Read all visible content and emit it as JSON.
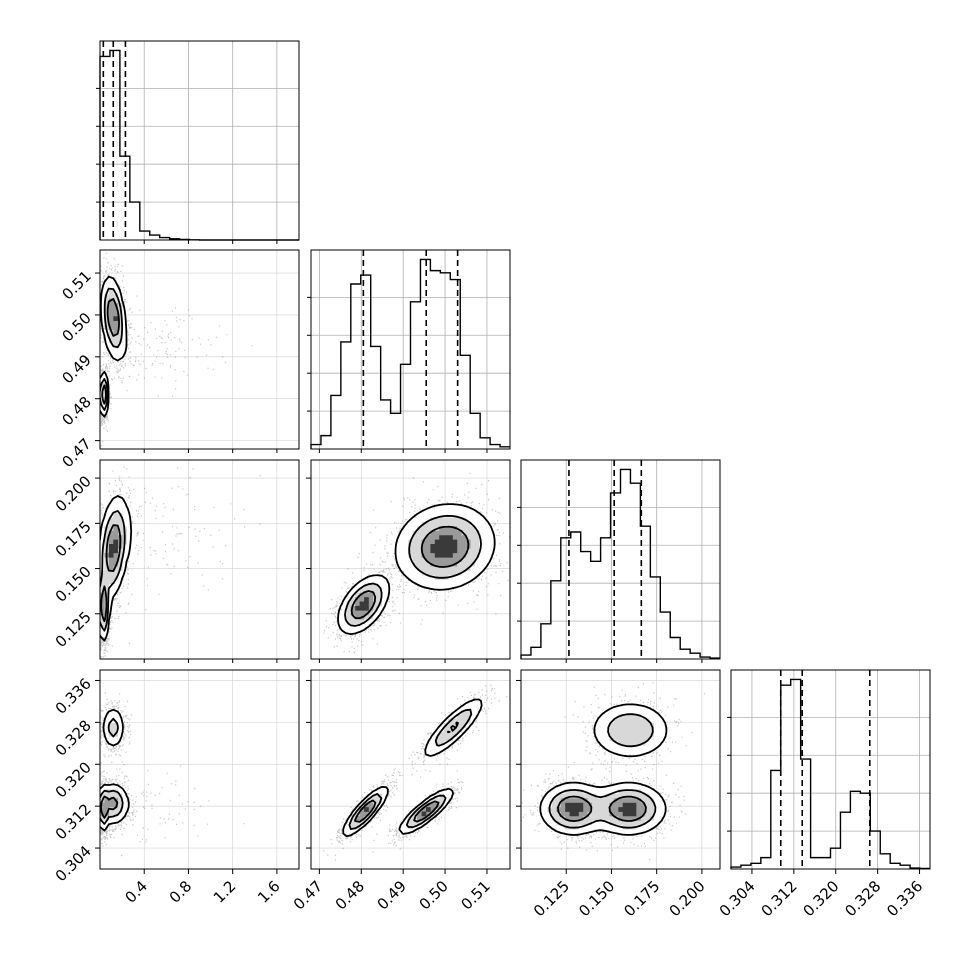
{
  "chart_data": {
    "type": "corner",
    "parameters": [
      {
        "range": [
          0,
          1.8
        ],
        "ticks": [
          0.4,
          0.8,
          1.2,
          1.6
        ],
        "tick_labels": [
          "0.4",
          "0.8",
          "1.2",
          "1.6"
        ],
        "quantiles": [
          0.03,
          0.12,
          0.23
        ],
        "histogram": {
          "bins": 20,
          "counts": [
            0.92,
            0.95,
            0.42,
            0.19,
            0.045,
            0.025,
            0.012,
            0.006,
            0.003,
            0.001,
            0,
            0,
            0,
            0,
            0,
            0,
            0,
            0,
            0,
            0
          ]
        }
      },
      {
        "range": [
          0.468,
          0.5155
        ],
        "ticks": [
          0.47,
          0.48,
          0.49,
          0.5,
          0.51
        ],
        "tick_labels": [
          "0.47",
          "0.48",
          "0.49",
          "0.50",
          "0.51"
        ],
        "quantiles": [
          0.4805,
          0.4955,
          0.503
        ],
        "histogram": {
          "bins": 20,
          "counts": [
            0.02,
            0.06,
            0.24,
            0.48,
            0.74,
            0.78,
            0.46,
            0.22,
            0.16,
            0.38,
            0.66,
            0.85,
            0.8,
            0.79,
            0.76,
            0.42,
            0.16,
            0.05,
            0.02,
            0.01
          ]
        }
      },
      {
        "range": [
          0.1,
          0.21
        ],
        "ticks": [
          0.125,
          0.15,
          0.175,
          0.2
        ],
        "tick_labels": [
          "0.125",
          "0.150",
          "0.175",
          "0.200"
        ],
        "quantiles": [
          0.1265,
          0.1515,
          0.1665
        ],
        "histogram": {
          "bins": 20,
          "counts": [
            0.02,
            0.06,
            0.18,
            0.4,
            0.62,
            0.65,
            0.55,
            0.5,
            0.62,
            0.85,
            0.97,
            0.9,
            0.68,
            0.42,
            0.24,
            0.11,
            0.05,
            0.03,
            0.01,
            0.005
          ]
        }
      },
      {
        "range": [
          0.3,
          0.338
        ],
        "ticks": [
          0.304,
          0.312,
          0.32,
          0.328,
          0.336
        ],
        "tick_labels": [
          "0.304",
          "0.312",
          "0.320",
          "0.328",
          "0.336"
        ],
        "quantiles": [
          0.3095,
          0.3136,
          0.3265
        ],
        "histogram": {
          "bins": 20,
          "counts": [
            0.01,
            0.02,
            0.03,
            0.06,
            0.52,
            0.97,
            1.0,
            0.58,
            0.06,
            0.06,
            0.11,
            0.3,
            0.41,
            0.4,
            0.2,
            0.08,
            0.03,
            0.02,
            0.005,
            0.003
          ]
        }
      }
    ],
    "joint": [
      {
        "row": 1,
        "col": 0,
        "modes": [
          {
            "x": 0.03,
            "y": 0.481,
            "sx": 0.02,
            "sy": 0.0025,
            "w": 1.0,
            "rho": 0
          },
          {
            "x": 0.12,
            "y": 0.4995,
            "sx": 0.05,
            "sy": 0.0045,
            "w": 1.0,
            "rho": -0.3
          },
          {
            "x": 0.5,
            "y": 0.492,
            "sx": 0.25,
            "sy": 0.004,
            "w": 0.1,
            "rho": 0
          }
        ]
      },
      {
        "row": 2,
        "col": 0,
        "modes": [
          {
            "x": 0.03,
            "y": 0.129,
            "sx": 0.025,
            "sy": 0.009,
            "w": 1.0,
            "rho": 0
          },
          {
            "x": 0.12,
            "y": 0.161,
            "sx": 0.06,
            "sy": 0.013,
            "w": 1.0,
            "rho": 0.3
          },
          {
            "x": 0.5,
            "y": 0.17,
            "sx": 0.3,
            "sy": 0.015,
            "w": 0.1,
            "rho": 0
          }
        ]
      },
      {
        "row": 2,
        "col": 1,
        "modes": [
          {
            "x": 0.4805,
            "y": 0.13,
            "sx": 0.0028,
            "sy": 0.0075,
            "w": 1.0,
            "rho": 0.5
          },
          {
            "x": 0.5,
            "y": 0.162,
            "sx": 0.0055,
            "sy": 0.011,
            "w": 1.0,
            "rho": 0.1
          }
        ]
      },
      {
        "row": 3,
        "col": 0,
        "modes": [
          {
            "x": 0.03,
            "y": 0.3115,
            "sx": 0.025,
            "sy": 0.002,
            "w": 1.0,
            "rho": 0
          },
          {
            "x": 0.12,
            "y": 0.3125,
            "sx": 0.06,
            "sy": 0.0018,
            "w": 0.9,
            "rho": 0
          },
          {
            "x": 0.12,
            "y": 0.327,
            "sx": 0.05,
            "sy": 0.002,
            "w": 0.55,
            "rho": 0
          },
          {
            "x": 0.5,
            "y": 0.312,
            "sx": 0.3,
            "sy": 0.003,
            "w": 0.08,
            "rho": 0
          }
        ]
      },
      {
        "row": 3,
        "col": 1,
        "modes": [
          {
            "x": 0.481,
            "y": 0.311,
            "sx": 0.0025,
            "sy": 0.0022,
            "w": 1.0,
            "rho": 0.85
          },
          {
            "x": 0.4955,
            "y": 0.311,
            "sx": 0.003,
            "sy": 0.002,
            "w": 1.0,
            "rho": 0.85
          },
          {
            "x": 0.502,
            "y": 0.327,
            "sx": 0.0035,
            "sy": 0.0028,
            "w": 0.65,
            "rho": 0.85
          }
        ]
      },
      {
        "row": 3,
        "col": 2,
        "modes": [
          {
            "x": 0.129,
            "y": 0.3115,
            "sx": 0.0085,
            "sy": 0.0023,
            "w": 1.0,
            "rho": 0
          },
          {
            "x": 0.1595,
            "y": 0.3115,
            "sx": 0.0095,
            "sy": 0.0023,
            "w": 1.0,
            "rho": 0
          },
          {
            "x": 0.1605,
            "y": 0.3265,
            "sx": 0.0105,
            "sy": 0.0026,
            "w": 0.6,
            "rho": 0
          }
        ]
      }
    ],
    "contour_levels": [
      0.1,
      0.3,
      0.6,
      0.85
    ],
    "grid": true,
    "title": "",
    "legend": ""
  }
}
